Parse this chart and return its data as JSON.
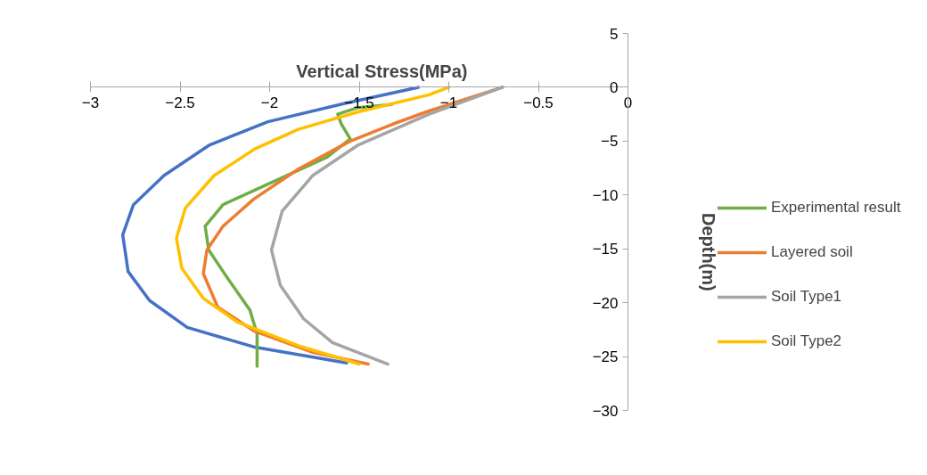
{
  "chart_data": {
    "type": "line",
    "xlabel": "Vertical Stress(MPa)",
    "ylabel": "Depth(m)",
    "xlim": [
      -3,
      0
    ],
    "xticks": [
      -3,
      -2.5,
      -2,
      -1.5,
      -1,
      -0.5,
      0
    ],
    "ylim": [
      -30,
      5
    ],
    "yticks": [
      5,
      0,
      -5,
      -10,
      -15,
      -20,
      -25,
      -30
    ],
    "grid": false,
    "legend": "right",
    "marker": "none",
    "line_style": "solid",
    "series": [
      {
        "color": "#4472c4",
        "x": [
          -1.17,
          -1.58,
          -2.01,
          -2.34,
          -2.59,
          -2.76,
          -2.82,
          -2.79,
          -2.67,
          -2.46,
          -2.09,
          -1.57
        ],
        "values": [
          0,
          -1.5,
          -3.2,
          -5.4,
          -8.2,
          -10.9,
          -13.7,
          -17.1,
          -19.8,
          -22.3,
          -24.1,
          -25.6
        ]
      },
      {
        "name": "Experimental result",
        "color": "#70ad47",
        "x": [
          -1.32,
          -1.51,
          -1.62,
          -1.6,
          -1.55,
          -1.68,
          -2.01,
          -2.26,
          -2.36,
          -2.34,
          -2.24,
          -2.11,
          -2.07,
          -2.07
        ],
        "values": [
          -1.6,
          -1.9,
          -2.5,
          -3.4,
          -4.8,
          -6.5,
          -9,
          -10.9,
          -12.9,
          -15.1,
          -17.6,
          -20.7,
          -22.9,
          -25.9
        ]
      },
      {
        "name": "Layered soil",
        "color": "#ed7d31",
        "x": [
          -0.7,
          -1.11,
          -1.31,
          -1.55,
          -1.84,
          -2.09,
          -2.26,
          -2.35,
          -2.37,
          -2.29,
          -2.09,
          -1.76,
          -1.45
        ],
        "values": [
          0,
          -2.2,
          -3.4,
          -5,
          -7.6,
          -10.4,
          -12.9,
          -15.1,
          -17.3,
          -20.4,
          -22.6,
          -24.6,
          -25.7
        ]
      },
      {
        "name": "Soil Type1",
        "color": "#a5a5a5",
        "x": [
          -0.7,
          -1.11,
          -1.51,
          -1.76,
          -1.93,
          -1.99,
          -1.94,
          -1.81,
          -1.65,
          -1.34
        ],
        "values": [
          0,
          -2.5,
          -5.4,
          -8.2,
          -11.5,
          -15.1,
          -18.4,
          -21.5,
          -23.7,
          -25.7
        ]
      },
      {
        "name": "Soil Type2",
        "color": "#ffc000",
        "x": [
          -1.0,
          -1.11,
          -1.51,
          -1.84,
          -2.08,
          -2.31,
          -2.47,
          -2.52,
          -2.49,
          -2.37,
          -2.18,
          -1.84,
          -1.5
        ],
        "values": [
          0,
          -0.7,
          -2.3,
          -3.9,
          -5.7,
          -8.2,
          -11.2,
          -14,
          -16.8,
          -19.6,
          -21.8,
          -24,
          -25.7
        ]
      }
    ]
  }
}
